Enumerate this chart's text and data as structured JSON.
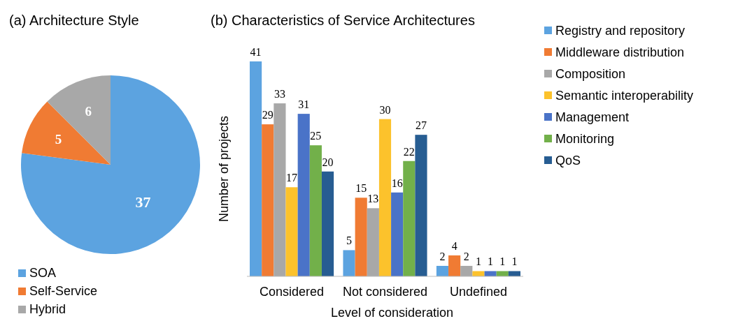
{
  "chart_data": [
    {
      "type": "pie",
      "title": "(a) Architecture Style",
      "categories": [
        "SOA",
        "Self-Service",
        "Hybrid"
      ],
      "values": [
        37,
        5,
        6
      ],
      "colors": [
        "#5ca3e0",
        "#f07b33",
        "#a8a8a8"
      ],
      "data_labels": true,
      "legend": "bottom"
    },
    {
      "type": "bar",
      "title": "(b) Characteristics of Service Architectures",
      "xlabel": "Level of consideration",
      "ylabel": "Number of projects",
      "categories": [
        "Considered",
        "Not considered",
        "Undefined"
      ],
      "data_labels": true,
      "legend": "right",
      "series": [
        {
          "name": "Registry and repository",
          "color": "#5ca3e0",
          "values": [
            41,
            5,
            2
          ]
        },
        {
          "name": "Middleware distribution",
          "color": "#f07b33",
          "values": [
            29,
            15,
            4
          ]
        },
        {
          "name": "Composition",
          "color": "#a8a8a8",
          "values": [
            33,
            13,
            2
          ]
        },
        {
          "name": "Semantic interoperability",
          "color": "#fcc22c",
          "values": [
            17,
            30,
            1
          ]
        },
        {
          "name": "Management",
          "color": "#4a73c8",
          "values": [
            31,
            16,
            1
          ]
        },
        {
          "name": "Monitoring",
          "color": "#72b04a",
          "values": [
            25,
            22,
            1
          ]
        },
        {
          "name": "QoS",
          "color": "#275d92",
          "values": [
            20,
            27,
            1
          ]
        }
      ]
    }
  ]
}
